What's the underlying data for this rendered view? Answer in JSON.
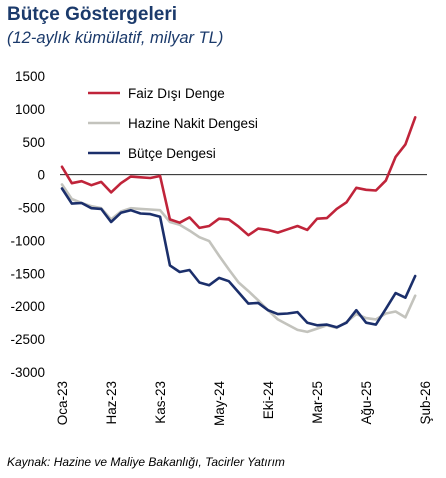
{
  "header": {
    "title": "Bütçe Göstergeleri",
    "subtitle": "(12-aylık kümülatif, milyar TL)"
  },
  "footer": {
    "source": "Kaynak: Hazine ve Maliye Bakanlığı, Tacirler Yatırım"
  },
  "chart_data": {
    "type": "line",
    "title": "Bütçe Göstergeleri",
    "subtitle": "(12-aylık kümülatif, milyar TL)",
    "x": [
      "Oca-23",
      "Şub-23",
      "Mar-23",
      "Nis-23",
      "May-23",
      "Haz-23",
      "Tem-23",
      "Ağu-23",
      "Eyl-23",
      "Eki-23",
      "Kas-23",
      "Ara-23",
      "Oca-24",
      "Şub-24",
      "Mar-24",
      "Nis-24",
      "May-24",
      "Haz-24",
      "Tem-24",
      "Ağu-24",
      "Eyl-24",
      "Eki-24",
      "Kas-24",
      "Ara-24",
      "Oca-25",
      "Şub-25",
      "Mar-25",
      "Nis-25",
      "May-25",
      "Haz-25",
      "Tem-25",
      "Ağu-25",
      "Eyl-25",
      "Eki-25",
      "Kas-25",
      "Ara-25",
      "Oca-26",
      "Şub-26"
    ],
    "xticks": [
      "Oca-23",
      "Haz-23",
      "Kas-23",
      "May-24",
      "Eki-24",
      "Mar-25",
      "Ağu-25",
      "Şub-26"
    ],
    "xtick_indices": [
      0,
      5,
      10,
      16,
      21,
      26,
      31,
      37
    ],
    "ylim": [
      -3000,
      1500
    ],
    "yticks": [
      1500,
      1000,
      500,
      0,
      -500,
      -1000,
      -1500,
      -2000,
      -2500,
      -3000
    ],
    "legend_position": "top-left",
    "series": [
      {
        "name": "Faiz Dışı Denge",
        "color": "#c0243a",
        "values": [
          120,
          -130,
          -100,
          -160,
          -110,
          -270,
          -130,
          -30,
          -40,
          -50,
          -20,
          -680,
          -730,
          -650,
          -810,
          -780,
          -670,
          -680,
          -790,
          -920,
          -820,
          -840,
          -880,
          -830,
          -780,
          -840,
          -670,
          -660,
          -520,
          -420,
          -200,
          -230,
          -240,
          -90,
          270,
          460,
          870,
          null
        ]
      },
      {
        "name": "Hazine Nakit Dengesi",
        "color": "#c3c3bd",
        "values": [
          -150,
          -370,
          -430,
          -480,
          -510,
          -680,
          -560,
          -510,
          -520,
          -530,
          -540,
          -720,
          -760,
          -850,
          -950,
          -1010,
          -1230,
          -1440,
          -1640,
          -1770,
          -1910,
          -2060,
          -2200,
          -2280,
          -2360,
          -2390,
          -2340,
          -2290,
          -2330,
          -2240,
          -2120,
          -2180,
          -2200,
          -2110,
          -2080,
          -2170,
          -1840,
          null
        ]
      },
      {
        "name": "Bütçe Dengesi",
        "color": "#1b2f6b",
        "values": [
          -210,
          -440,
          -430,
          -510,
          -520,
          -720,
          -580,
          -540,
          -590,
          -600,
          -640,
          -1380,
          -1480,
          -1450,
          -1640,
          -1680,
          -1570,
          -1620,
          -1790,
          -1960,
          -1950,
          -2060,
          -2120,
          -2110,
          -2090,
          -2250,
          -2290,
          -2280,
          -2320,
          -2250,
          -2060,
          -2250,
          -2280,
          -2040,
          -1800,
          -1870,
          -1540,
          null
        ]
      }
    ]
  }
}
